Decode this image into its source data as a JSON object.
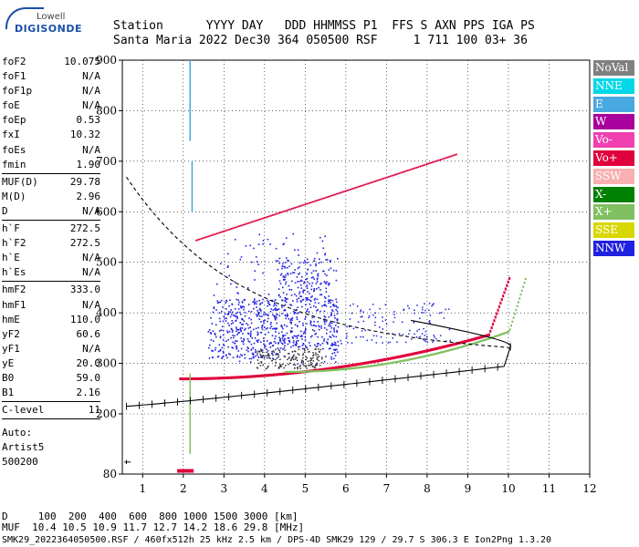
{
  "logo": {
    "line1": "Lowell",
    "line2": "DIGISONDE"
  },
  "header": {
    "row1": "Station      YYYY DAY   DDD HHMMSS P1  FFS S AXN PPS IGA PS",
    "row2": "Santa Maria 2022 Dec30 364 050500 RSF     1 711 100 03+ 36"
  },
  "params": [
    {
      "label": "foF2",
      "value": "10.075"
    },
    {
      "label": "foF1",
      "value": "N/A"
    },
    {
      "label": "foF1p",
      "value": "N/A"
    },
    {
      "label": "foE",
      "value": "N/A"
    },
    {
      "label": "foEp",
      "value": "0.53"
    },
    {
      "label": "fxI",
      "value": "10.32"
    },
    {
      "label": "foEs",
      "value": "N/A"
    },
    {
      "label": "fmin",
      "value": "1.90"
    },
    {
      "label": "MUF(D)",
      "value": "29.78"
    },
    {
      "label": "M(D)",
      "value": "2.96"
    },
    {
      "label": "D",
      "value": "N/A"
    },
    {
      "label": "h`F",
      "value": "272.5"
    },
    {
      "label": "h`F2",
      "value": "272.5"
    },
    {
      "label": "h`E",
      "value": "N/A"
    },
    {
      "label": "h`Es",
      "value": "N/A"
    },
    {
      "label": "hmF2",
      "value": "333.0"
    },
    {
      "label": "hmF1",
      "value": "N/A"
    },
    {
      "label": "hmE",
      "value": "110.0"
    },
    {
      "label": "yF2",
      "value": "60.6"
    },
    {
      "label": "yF1",
      "value": "N/A"
    },
    {
      "label": "yE",
      "value": "20.0"
    },
    {
      "label": "B0",
      "value": "59.0"
    },
    {
      "label": "B1",
      "value": "2.16"
    },
    {
      "label": "C-level",
      "value": "11"
    }
  ],
  "auto": {
    "line1": "Auto:",
    "line2": "Artist5",
    "line3": "500200"
  },
  "legend": [
    {
      "label": "NoVal",
      "bg": "#808080",
      "fg": "#ffffff"
    },
    {
      "label": "NNE",
      "bg": "#00d8e8",
      "fg": "#ffffff"
    },
    {
      "label": "E",
      "bg": "#48a8e0",
      "fg": "#ffffff"
    },
    {
      "label": "W",
      "bg": "#a8009c",
      "fg": "#ffffff"
    },
    {
      "label": "Vo-",
      "bg": "#f040b0",
      "fg": "#ffffff"
    },
    {
      "label": "Vo+",
      "bg": "#e0003c",
      "fg": "#ffffff"
    },
    {
      "label": "SSW",
      "bg": "#f8b0b0",
      "fg": "#ffffff"
    },
    {
      "label": "X-",
      "bg": "#008000",
      "fg": "#ffffff"
    },
    {
      "label": "X+",
      "bg": "#80c060",
      "fg": "#ffffff"
    },
    {
      "label": "SSE",
      "bg": "#d8d800",
      "fg": "#ffffff"
    },
    {
      "label": "NNW",
      "bg": "#2020e0",
      "fg": "#ffffff"
    }
  ],
  "bottom": {
    "line1": "D     100  200  400  600  800 1000 1500 3000 [km]",
    "line2": "MUF  10.4 10.5 10.9 11.7 12.7 14.2 18.6 29.8 [MHz]",
    "line3": "SMK29_2022364050500.RSF / 460fx512h 25 kHz 2.5 km / DPS-4D SMK29 129 / 29.7 S 306.3 E Ion2Png 1.3.20"
  },
  "chart_data": {
    "type": "scatter",
    "xlim": [
      0.5,
      12
    ],
    "ylim": [
      80,
      900
    ],
    "x_ticks": [
      "1",
      "2",
      "3",
      "4",
      "5",
      "6",
      "7",
      "8",
      "9",
      "10",
      "11",
      "12"
    ],
    "y_ticks": [
      "80",
      "200",
      "300",
      "400",
      "500",
      "600",
      "700",
      "800",
      "900"
    ],
    "grid": true,
    "colors": {
      "o_trace": "#e0003c",
      "x_trace": "#80c060",
      "echo_cloud": "#2020e0",
      "multihop": "#e0003c",
      "profile": "#000000",
      "muf_curve": "#000000"
    }
  }
}
